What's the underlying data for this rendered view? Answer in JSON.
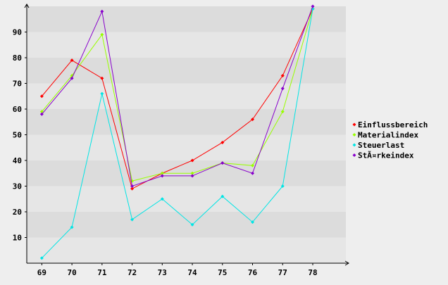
{
  "chart_data": {
    "type": "line",
    "title": "",
    "xlabel": "",
    "ylabel": "",
    "x": [
      "69",
      "70",
      "71",
      "72",
      "73",
      "74",
      "75",
      "76",
      "77",
      "78"
    ],
    "xlim": [
      68.5,
      79.1
    ],
    "ylim": [
      0,
      100
    ],
    "yticks": [
      10,
      20,
      30,
      40,
      50,
      60,
      70,
      80,
      90
    ],
    "grid": "alternating horizontal bands",
    "legend": "right",
    "series": [
      {
        "name": "Einflussbereich",
        "color": "#ff0000",
        "values": [
          65,
          79,
          72,
          29,
          35,
          40,
          47,
          56,
          73,
          99
        ]
      },
      {
        "name": "Materialindex",
        "color": "#99ff00",
        "values": [
          59,
          73,
          89,
          32,
          35,
          35,
          39,
          38,
          59,
          99
        ]
      },
      {
        "name": "Steuerlast",
        "color": "#00e5e5",
        "values": [
          2,
          14,
          66,
          17,
          25,
          15,
          26,
          16,
          30,
          99
        ]
      },
      {
        "name": "StÃ¤rkeindex",
        "color": "#8800cc",
        "values": [
          58,
          72,
          98,
          30,
          34,
          34,
          39,
          35,
          68,
          100
        ]
      }
    ]
  }
}
